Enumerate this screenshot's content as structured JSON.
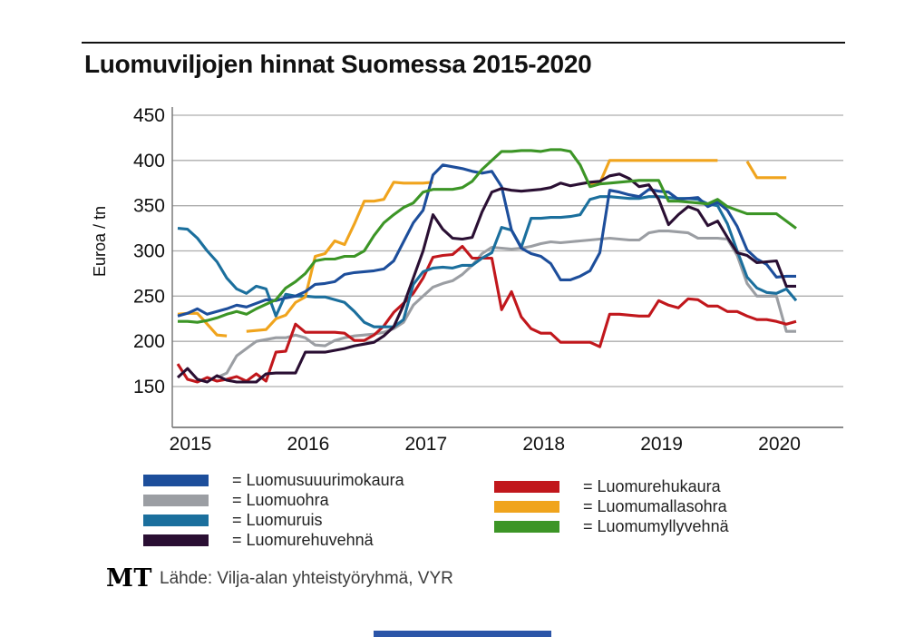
{
  "header": {
    "title": "Luomuviljojen hinnat Suomessa 2015-2020"
  },
  "footer": {
    "logo": "MT",
    "source": "Lähde: Vilja-alan yhteistyöryhmä, VYR"
  },
  "legend": {
    "prefix": "= ",
    "left_series": [
      0,
      1,
      2,
      3
    ],
    "right_series": [
      4,
      5,
      6
    ]
  },
  "chart_data": {
    "type": "line",
    "title": "Luomuviljojen hinnat Suomessa 2015-2020",
    "xlabel": "",
    "ylabel": "Euroa / tn",
    "x_tick_labels": [
      "2015",
      "2016",
      "2017",
      "2018",
      "2019",
      "2020"
    ],
    "y_ticks": [
      150,
      200,
      250,
      300,
      350,
      400,
      450
    ],
    "y_axis_range": [
      150,
      450
    ],
    "grid": true,
    "legend_position": "bottom",
    "months": 64,
    "x_start": "2015-01",
    "x_end": "2020-04",
    "draw_order": [
      1,
      4,
      2,
      5,
      0,
      3,
      6
    ],
    "series": [
      {
        "name": "luomusuuurimokaura",
        "label": "Luomusuuurimokaura",
        "color": "#1d4e9b",
        "values": [
          228,
          231,
          236,
          230,
          233,
          236,
          240,
          238,
          242,
          246,
          245,
          248,
          250,
          255,
          263,
          264,
          266,
          274,
          276,
          277,
          278,
          280,
          289,
          310,
          331,
          345,
          384,
          395,
          393,
          391,
          388,
          386,
          388,
          371,
          323,
          303,
          297,
          294,
          286,
          268,
          268,
          272,
          278,
          298,
          367,
          365,
          362,
          360,
          368,
          366,
          365,
          357,
          358,
          359,
          349,
          354,
          345,
          327,
          301,
          291,
          285,
          271,
          272,
          272
        ]
      },
      {
        "name": "luomuohra",
        "label": "Luomuohra",
        "color": "#9b9ea3",
        "values": [
          null,
          null,
          null,
          null,
          160,
          165,
          184,
          192,
          200,
          202,
          204,
          204,
          207,
          204,
          196,
          195,
          201,
          204,
          206,
          207,
          208,
          210,
          214,
          221,
          240,
          250,
          260,
          264,
          267,
          274,
          284,
          297,
          304,
          303,
          302,
          303,
          305,
          308,
          310,
          309,
          310,
          311,
          312,
          313,
          314,
          313,
          312,
          312,
          320,
          322,
          322,
          321,
          320,
          314,
          314,
          314,
          313,
          295,
          264,
          250,
          250,
          250,
          211,
          211
        ]
      },
      {
        "name": "luomuruis",
        "label": "Luomuruis",
        "color": "#1b6f9d",
        "values": [
          325,
          324,
          314,
          300,
          288,
          270,
          258,
          253,
          261,
          258,
          228,
          252,
          250,
          250,
          249,
          249,
          246,
          243,
          233,
          221,
          216,
          216,
          216,
          224,
          263,
          277,
          281,
          282,
          281,
          284,
          284,
          292,
          298,
          326,
          323,
          304,
          336,
          336,
          337,
          337,
          338,
          340,
          357,
          360,
          360,
          359,
          358,
          358,
          360,
          360,
          359,
          358,
          358,
          357,
          352,
          350,
          330,
          300,
          271,
          259,
          254,
          253,
          258,
          245
        ]
      },
      {
        "name": "luomurehuvehna",
        "label": "Luomurehuvehnä",
        "color": "#2a0f33",
        "values": [
          160,
          170,
          158,
          155,
          162,
          157,
          155,
          155,
          155,
          164,
          165,
          165,
          165,
          188,
          188,
          188,
          190,
          192,
          195,
          197,
          199,
          206,
          216,
          240,
          270,
          300,
          340,
          324,
          314,
          313,
          315,
          343,
          365,
          369,
          367,
          366,
          367,
          368,
          370,
          375,
          372,
          374,
          376,
          377,
          383,
          385,
          380,
          371,
          373,
          357,
          329,
          340,
          349,
          345,
          328,
          333,
          315,
          298,
          295,
          287,
          288,
          289,
          261,
          261
        ]
      },
      {
        "name": "luomurehukaura",
        "label": "Luomurehukaura",
        "color": "#c1171c",
        "values": [
          175,
          158,
          155,
          160,
          156,
          158,
          161,
          156,
          164,
          156,
          188,
          189,
          219,
          210,
          210,
          210,
          210,
          209,
          201,
          201,
          207,
          217,
          232,
          242,
          253,
          270,
          293,
          295,
          296,
          305,
          292,
          292,
          292,
          235,
          255,
          227,
          214,
          209,
          209,
          199,
          199,
          199,
          199,
          194,
          230,
          230,
          229,
          228,
          228,
          245,
          240,
          237,
          247,
          246,
          239,
          239,
          233,
          233,
          228,
          224,
          224,
          222,
          219,
          222
        ]
      },
      {
        "name": "luomumallasohra",
        "label": "Luomumallasohra",
        "color": "#f0a41d",
        "values": [
          230,
          231,
          231,
          219,
          207,
          206,
          null,
          211,
          212,
          213,
          225,
          229,
          243,
          249,
          294,
          297,
          311,
          307,
          330,
          355,
          355,
          357,
          376,
          375,
          375,
          375,
          376,
          null,
          null,
          null,
          null,
          null,
          null,
          null,
          null,
          null,
          null,
          null,
          null,
          null,
          null,
          null,
          374,
          375,
          400,
          400,
          400,
          400,
          400,
          400,
          400,
          400,
          400,
          400,
          400,
          400,
          null,
          null,
          399,
          381,
          381,
          381,
          381,
          null
        ]
      },
      {
        "name": "luomumyllyvehna",
        "label": "Luomumyllyvehnä",
        "color": "#3c9526",
        "values": [
          222,
          222,
          221,
          223,
          226,
          230,
          233,
          230,
          236,
          241,
          246,
          259,
          266,
          275,
          289,
          291,
          291,
          294,
          294,
          300,
          317,
          331,
          340,
          348,
          353,
          365,
          368,
          368,
          368,
          370,
          377,
          390,
          400,
          410,
          410,
          411,
          411,
          410,
          412,
          412,
          410,
          395,
          371,
          374,
          375,
          376,
          377,
          378,
          378,
          378,
          355,
          355,
          354,
          353,
          352,
          357,
          349,
          345,
          341,
          341,
          341,
          341,
          333,
          325
        ]
      }
    ]
  }
}
